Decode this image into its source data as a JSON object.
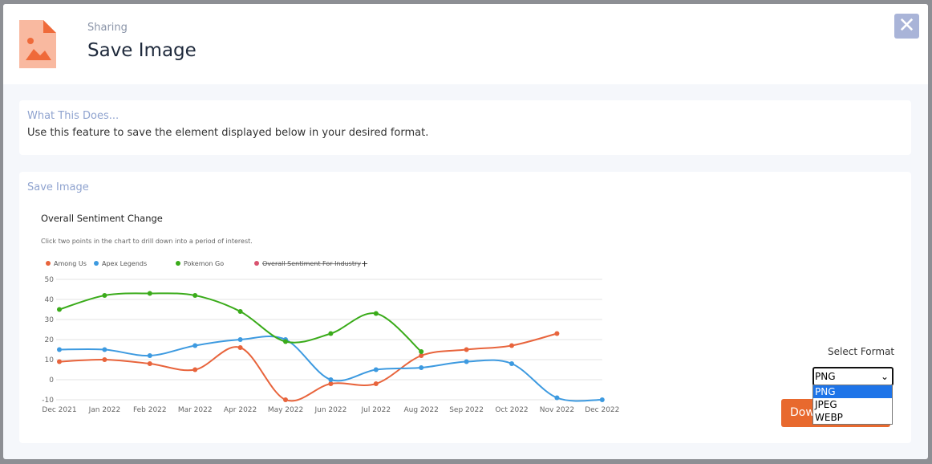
{
  "header": {
    "subtitle": "Sharing",
    "title": "Save Image"
  },
  "info": {
    "title": "What This Does...",
    "text": "Use this feature to save the element displayed below in your desired format."
  },
  "save": {
    "title": "Save Image",
    "format_label": "Select Format",
    "selected": "PNG",
    "options": [
      "PNG",
      "JPEG",
      "WEBP"
    ],
    "button": "Download"
  },
  "chart_data": {
    "type": "line",
    "title": "Overall Sentiment Change",
    "subtitle": "Click two points in the chart to drill down into a period of interest.",
    "legend_extra": "+",
    "categories": [
      "Dec 2021",
      "Jan 2022",
      "Feb 2022",
      "Mar 2022",
      "Apr 2022",
      "May 2022",
      "Jun 2022",
      "Jul 2022",
      "Aug 2022",
      "Sep 2022",
      "Oct 2022",
      "Nov 2022",
      "Dec 2022"
    ],
    "series": [
      {
        "name": "Among Us",
        "color": "#e8643c",
        "values": [
          9,
          10,
          8,
          5,
          16,
          -10,
          -2,
          -2,
          12,
          15,
          17,
          23,
          null
        ]
      },
      {
        "name": "Apex Legends",
        "color": "#3d9ae0",
        "values": [
          15,
          15,
          12,
          17,
          20,
          20,
          0,
          5,
          6,
          9,
          8,
          -9,
          -10
        ]
      },
      {
        "name": "Pokemon Go",
        "color": "#3aab1a",
        "values": [
          35,
          42,
          43,
          42,
          34,
          19,
          23,
          33,
          14,
          null,
          null,
          null,
          null
        ]
      },
      {
        "name": "Overall Sentiment For Industry",
        "color": "#d9536f",
        "hidden": true,
        "values": [
          null,
          null,
          null,
          null,
          null,
          null,
          null,
          null,
          null,
          null,
          null,
          null,
          null
        ]
      }
    ],
    "ylim": [
      -10,
      50
    ],
    "yticks": [
      -10,
      0,
      10,
      20,
      30,
      40,
      50
    ],
    "grid": true
  }
}
